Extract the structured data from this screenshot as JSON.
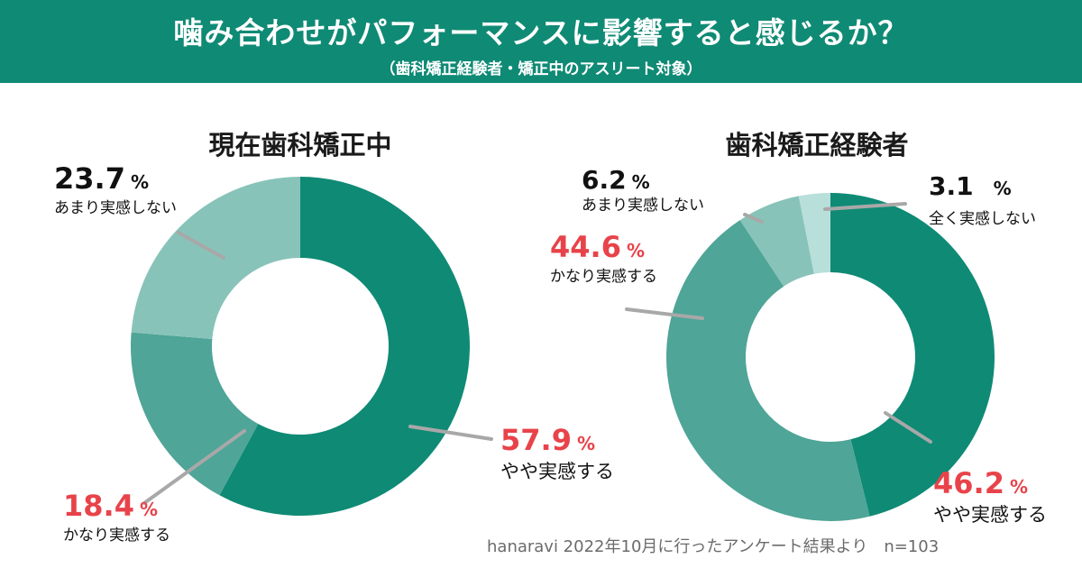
{
  "header": {
    "title": "噛み合わせがパフォーマンスに影響すると感じるか？",
    "subtitle": "（歯科矯正経験者・矯正中のアスリート対象）"
  },
  "chart_data": [
    {
      "type": "pie",
      "title": "現在歯科矯正中",
      "unit": "%",
      "slices": [
        {
          "label": "やや実感する",
          "value": 57.9,
          "display": "57.9",
          "color": "#0f8a75"
        },
        {
          "label": "かなり実感する",
          "value": 18.4,
          "display": "18.4",
          "color": "#4fa597"
        },
        {
          "label": "あまり実感しない",
          "value": 23.7,
          "display": "23.7",
          "color": "#88c3b9"
        }
      ]
    },
    {
      "type": "pie",
      "title": "歯科矯正経験者",
      "unit": "%",
      "slices": [
        {
          "label": "やや実感する",
          "value": 46.2,
          "display": "46.2",
          "color": "#0f8a75"
        },
        {
          "label": "かなり実感する",
          "value": 44.6,
          "display": "44.6",
          "color": "#4fa597"
        },
        {
          "label": "あまり実感しない",
          "value": 6.2,
          "display": "6.2",
          "color": "#88c3b9"
        },
        {
          "label": "全く実感しない",
          "value": 3.1,
          "display": "3.1",
          "color": "#b8dfda"
        }
      ]
    }
  ],
  "footer": {
    "source": "hanaravi 2022年10月に行ったアンケート結果より　n=103"
  }
}
